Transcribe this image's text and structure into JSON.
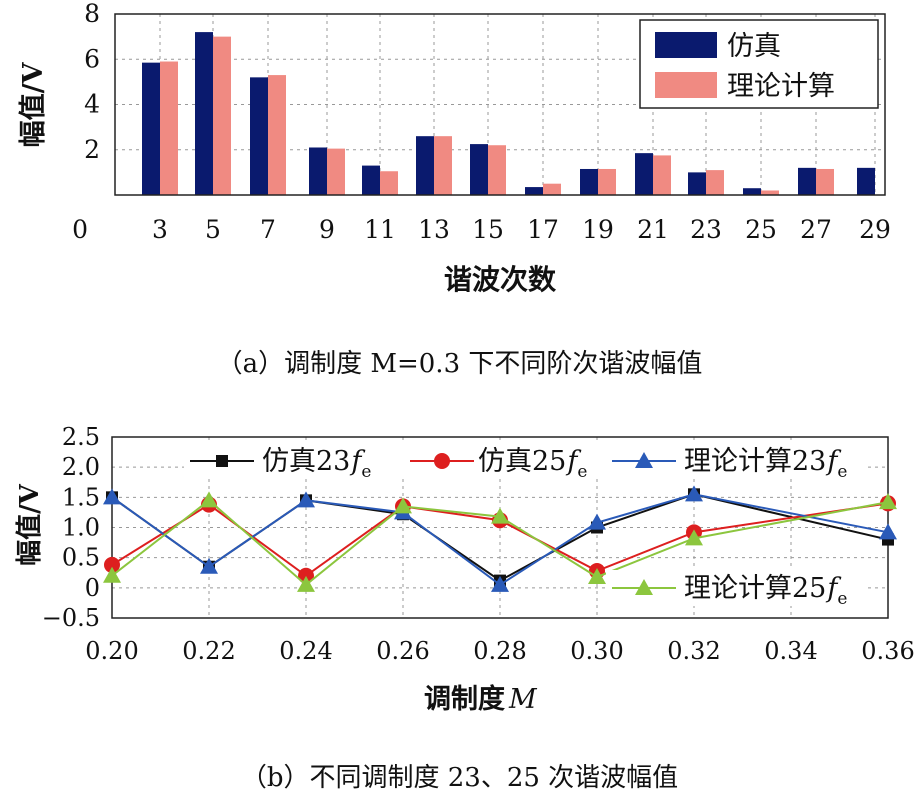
{
  "chart_data": [
    {
      "type": "bar",
      "categories": [
        "3",
        "5",
        "7",
        "9",
        "11",
        "13",
        "15",
        "17",
        "19",
        "21",
        "23",
        "25",
        "27",
        "29"
      ],
      "series": [
        {
          "name": "仿真",
          "values": [
            5.85,
            7.2,
            5.2,
            2.1,
            1.3,
            2.6,
            2.25,
            0.35,
            1.15,
            1.85,
            1.0,
            0.3,
            1.2,
            1.2
          ],
          "color": "#0a1a6e"
        },
        {
          "name": "理论计算",
          "values": [
            5.9,
            7.0,
            5.3,
            2.05,
            1.05,
            2.6,
            2.2,
            0.5,
            1.15,
            1.75,
            1.1,
            0.2,
            1.15,
            null
          ],
          "color": "#f08a82"
        }
      ],
      "xlabel": "谐波次数",
      "ylabel": "幅值/V",
      "ylim": [
        0,
        8
      ],
      "yticks": [
        "0",
        "2",
        "4",
        "6",
        "8"
      ],
      "xticks": [
        "0",
        "3",
        "5",
        "7",
        "9",
        "11",
        "13",
        "15",
        "17",
        "19",
        "21",
        "23",
        "25",
        "27",
        "29"
      ],
      "grid": true,
      "legend_position": "top-right",
      "caption": "（a）调制度 M=0.3 下不同阶次谐波幅值"
    },
    {
      "type": "line",
      "x": [
        0.2,
        0.22,
        0.24,
        0.26,
        0.28,
        0.3,
        0.32,
        0.36
      ],
      "series": [
        {
          "name": "仿真23",
          "subscript": "e",
          "values": [
            1.5,
            0.35,
            1.45,
            1.22,
            0.12,
            1.0,
            1.55,
            0.8
          ],
          "color": "#111111",
          "marker": "square"
        },
        {
          "name": "仿真25",
          "subscript": "e",
          "values": [
            0.38,
            1.38,
            0.2,
            1.35,
            1.12,
            0.28,
            0.92,
            1.4
          ],
          "color": "#dd1f1f",
          "marker": "circle"
        },
        {
          "name": "理论计算23",
          "subscript": "e",
          "values": [
            1.5,
            0.35,
            1.45,
            1.25,
            0.05,
            1.08,
            1.55,
            0.92
          ],
          "color": "#2a5ab8",
          "marker": "triangle"
        },
        {
          "name": "理论计算25",
          "subscript": "e",
          "values": [
            0.2,
            1.45,
            0.05,
            1.35,
            1.18,
            0.18,
            0.82,
            1.42
          ],
          "color": "#8cc63e",
          "marker": "triangle"
        }
      ],
      "xlabel": "调制度",
      "xlabel_italic": "M",
      "ylabel": "幅值/V",
      "xlim": [
        0.2,
        0.36
      ],
      "ylim": [
        -0.5,
        2.5
      ],
      "xticks": [
        "0.20",
        "0.22",
        "0.24",
        "0.26",
        "0.28",
        "0.30",
        "0.32",
        "0.34",
        "0.36"
      ],
      "yticks": [
        "−0.5",
        "0",
        "0.5",
        "1.0",
        "1.5",
        "2.0",
        "2.5"
      ],
      "grid": true,
      "legend_position": "top",
      "caption": "（b）不同调制度 23、25 次谐波幅值"
    }
  ]
}
